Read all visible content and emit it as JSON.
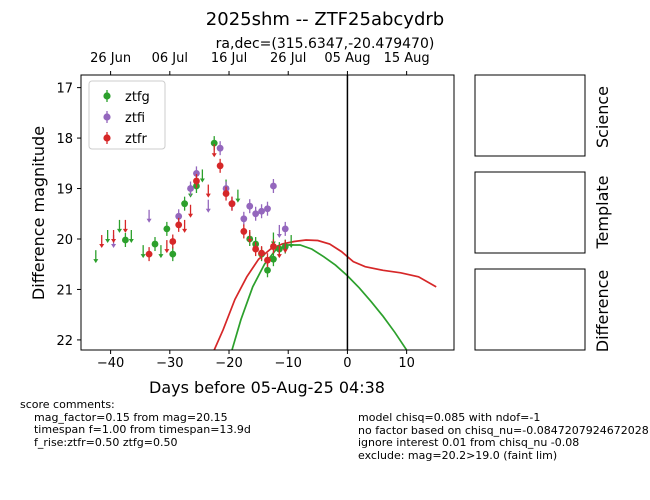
{
  "chart_data": {
    "type": "scatter",
    "title": "2025shm -- ZTF25abcydrb",
    "subtitle": "ra,dec=(315.6347,-20.479470)",
    "xlabel": "Days before 05-Aug-25 04:38",
    "ylabel": "Difference magnitude",
    "xlim": [
      -45,
      18
    ],
    "ylim": [
      22.2,
      16.75
    ],
    "y_inverted": true,
    "x_ticks": [
      -40,
      -30,
      -20,
      -10,
      0,
      10
    ],
    "y_ticks": [
      17,
      18,
      19,
      20,
      21,
      22
    ],
    "top_axis_ticks": [
      {
        "x": -40,
        "label": "26 Jun"
      },
      {
        "x": -30,
        "label": "06 Jul"
      },
      {
        "x": -20,
        "label": "16 Jul"
      },
      {
        "x": -10,
        "label": "26 Jul"
      },
      {
        "x": 0,
        "label": "05 Aug"
      },
      {
        "x": 10,
        "label": "15 Aug"
      }
    ],
    "vline_x": 0,
    "grid": false,
    "legend_position": "top-left",
    "series": [
      {
        "name": "ztfg",
        "color": "#2ca02c",
        "points": [
          [
            -10.5,
            20.15
          ],
          [
            -11.5,
            20.2
          ],
          [
            -12.5,
            20.4
          ],
          [
            -13.5,
            20.62
          ],
          [
            -14.5,
            20.3
          ],
          [
            -15.5,
            20.1
          ],
          [
            -16.5,
            20.0
          ],
          [
            -22.5,
            18.1
          ],
          [
            -25.5,
            18.95
          ],
          [
            -27.5,
            19.3
          ],
          [
            -29.5,
            20.3
          ],
          [
            -30.5,
            19.8
          ],
          [
            -32.5,
            20.1
          ],
          [
            -37.5,
            20.02
          ]
        ],
        "limits": [
          [
            -42.5,
            20.4
          ],
          [
            -40.5,
            20.0
          ],
          [
            -38.5,
            19.8
          ],
          [
            -36.5,
            20.0
          ],
          [
            -34.5,
            20.3
          ],
          [
            -31.5,
            20.3
          ],
          [
            -28.5,
            19.7
          ],
          [
            -26.5,
            19.1
          ],
          [
            -24.5,
            18.8
          ],
          [
            -20.5,
            19.0
          ],
          [
            -18.5,
            19.2
          ],
          [
            -12.5,
            20.05
          ],
          [
            -9.5,
            20.1
          ]
        ]
      },
      {
        "name": "ztfi",
        "color": "#9467bd",
        "points": [
          [
            -10.5,
            19.8
          ],
          [
            -12.5,
            18.95
          ],
          [
            -13.5,
            19.4
          ],
          [
            -14.5,
            19.45
          ],
          [
            -15.5,
            19.5
          ],
          [
            -16.5,
            19.35
          ],
          [
            -17.5,
            19.6
          ],
          [
            -19.5,
            19.3
          ],
          [
            -20.5,
            19.0
          ],
          [
            -21.5,
            18.2
          ],
          [
            -25.5,
            18.7
          ],
          [
            -26.5,
            19.0
          ],
          [
            -28.5,
            19.55
          ]
        ],
        "limits": [
          [
            -11.5,
            19.9
          ],
          [
            -23.5,
            19.4
          ],
          [
            -33.5,
            19.6
          ],
          [
            -39.5,
            20.1
          ]
        ]
      },
      {
        "name": "ztfr",
        "color": "#d62728",
        "points": [
          [
            -13.5,
            20.42
          ],
          [
            -12.5,
            20.15
          ],
          [
            -14.5,
            20.28
          ],
          [
            -15.5,
            20.2
          ],
          [
            -17.5,
            19.85
          ],
          [
            -19.5,
            19.3
          ],
          [
            -20.5,
            19.1
          ],
          [
            -21.5,
            18.55
          ],
          [
            -25.5,
            18.85
          ],
          [
            -28.5,
            19.72
          ],
          [
            -29.5,
            20.05
          ],
          [
            -33.5,
            20.3
          ]
        ],
        "limits": [
          [
            -41.5,
            20.1
          ],
          [
            -39.5,
            20.0
          ],
          [
            -37.5,
            19.8
          ],
          [
            -30.5,
            20.2
          ],
          [
            -27.5,
            19.8
          ],
          [
            -26.5,
            19.5
          ],
          [
            -23.5,
            19.1
          ],
          [
            -22.5,
            18.3
          ],
          [
            -16.5,
            20.0
          ],
          [
            -11.5,
            20.3
          ],
          [
            -10.5,
            20.2
          ]
        ]
      }
    ],
    "model_curves": [
      {
        "band": "ztfg",
        "color": "#2ca02c",
        "points": [
          [
            -19.5,
            22.2
          ],
          [
            -18,
            21.6
          ],
          [
            -16,
            20.95
          ],
          [
            -14,
            20.5
          ],
          [
            -12,
            20.2
          ],
          [
            -10,
            20.12
          ],
          [
            -8,
            20.12
          ],
          [
            -6,
            20.2
          ],
          [
            -4,
            20.35
          ],
          [
            -2,
            20.52
          ],
          [
            0,
            20.73
          ],
          [
            2,
            20.97
          ],
          [
            4,
            21.24
          ],
          [
            6,
            21.53
          ],
          [
            8,
            21.85
          ],
          [
            10,
            22.2
          ]
        ]
      },
      {
        "band": "ztfr",
        "color": "#d62728",
        "points": [
          [
            -22.5,
            22.2
          ],
          [
            -21,
            21.8
          ],
          [
            -19,
            21.2
          ],
          [
            -17,
            20.75
          ],
          [
            -15,
            20.4
          ],
          [
            -13,
            20.2
          ],
          [
            -11,
            20.1
          ],
          [
            -9,
            20.05
          ],
          [
            -7,
            20.02
          ],
          [
            -5,
            20.03
          ],
          [
            -3,
            20.1
          ],
          [
            -1,
            20.25
          ],
          [
            1,
            20.45
          ],
          [
            3,
            20.55
          ],
          [
            6,
            20.62
          ],
          [
            9,
            20.67
          ],
          [
            12,
            20.75
          ],
          [
            15,
            20.95
          ]
        ]
      }
    ]
  },
  "side_panels": {
    "labels": [
      "Science",
      "Template",
      "Difference"
    ]
  },
  "comments": {
    "left": "score comments:\n    mag_factor=0.15 from mag=20.15\n    timespan f=1.00 from timespan=13.9d\n    f_rise:ztfr=0.50 ztfg=0.50",
    "right": "model chisq=0.085 with ndof=-1\nno factor based on chisq_nu=-0.0847207924672028\nignore interest 0.01 from chisq_nu -0.08\nexclude: mag=20.2>19.0 (faint lim)"
  }
}
